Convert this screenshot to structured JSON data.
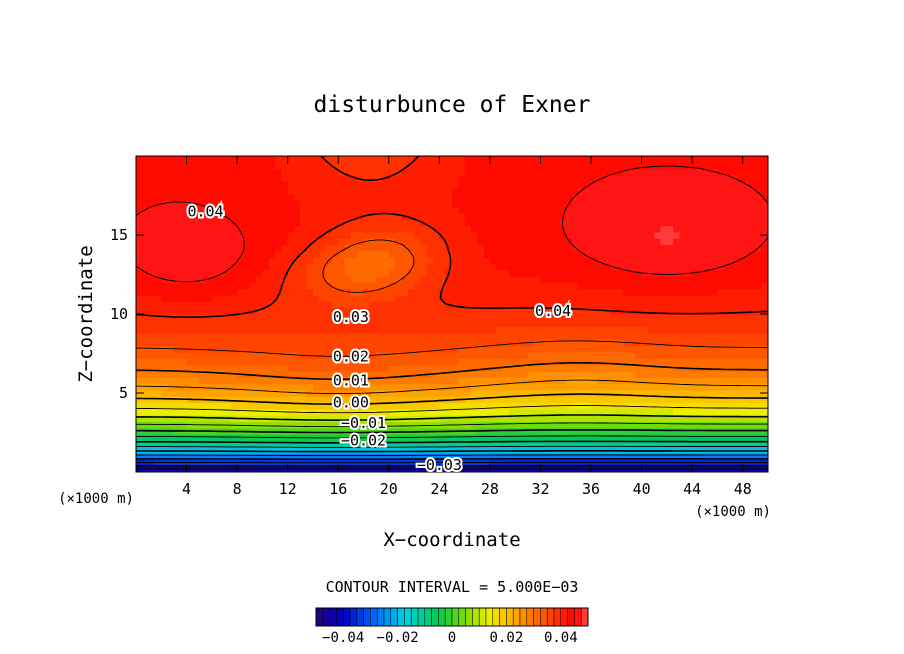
{
  "chart_data": {
    "type": "contour",
    "title": "disturbunce of Exner",
    "xlabel": "X−coordinate",
    "ylabel": "Z−coordinate",
    "x_unit_left": "(×1000 m)",
    "x_unit_right": "(×1000 m)",
    "xlim": [
      0,
      50
    ],
    "ylim": [
      0,
      20
    ],
    "x_ticks": [
      4,
      8,
      12,
      16,
      20,
      24,
      28,
      32,
      36,
      40,
      44,
      48
    ],
    "x_tick_labels": [
      "4",
      "8",
      "12",
      "16",
      "20",
      "24",
      "28",
      "32",
      "36",
      "40",
      "44",
      "48"
    ],
    "y_ticks": [
      5,
      10,
      15
    ],
    "y_tick_labels": [
      "5",
      "10",
      "15"
    ],
    "contour_interval_text": "CONTOUR INTERVAL = 5.000E−03",
    "contour_labels": [
      {
        "text": "0.04",
        "x": 5.5,
        "z": 16.5
      },
      {
        "text": "0.04",
        "x": 33.0,
        "z": 10.2
      },
      {
        "text": "0.03",
        "x": 17.0,
        "z": 9.8
      },
      {
        "text": "0.02",
        "x": 17.0,
        "z": 7.3
      },
      {
        "text": "0.01",
        "x": 17.0,
        "z": 5.8
      },
      {
        "text": "0.00",
        "x": 17.0,
        "z": 4.4
      },
      {
        "text": "−0.01",
        "x": 18.0,
        "z": 3.1
      },
      {
        "text": "−0.02",
        "x": 18.0,
        "z": 2.0
      },
      {
        "text": "−0.03",
        "x": 24.0,
        "z": 0.45
      }
    ],
    "colorbar": {
      "min": -0.05,
      "max": 0.05,
      "tick_values": [
        -0.04,
        -0.02,
        0,
        0.02,
        0.04
      ],
      "tick_labels": [
        "−0.04",
        "−0.02",
        "0",
        "0.02",
        "0.04"
      ]
    }
  }
}
